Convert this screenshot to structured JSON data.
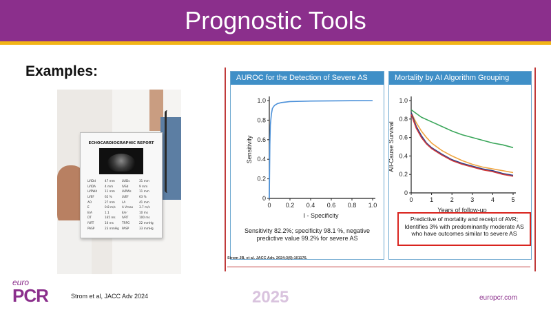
{
  "slide": {
    "title": "Prognostic Tools",
    "subtitle": "Examples:",
    "colors": {
      "brand": "#8b2f8c",
      "accent": "#f2b516",
      "panel_header": "#3f8fc7",
      "highlight_box": "#d9241e"
    }
  },
  "photo": {
    "report_title": "ECHOCARDIOGRAPHIC REPORT",
    "rows": [
      [
        "LVIDd",
        "47 mm",
        "LVIDs",
        "31 mm"
      ],
      [
        "LVIDA",
        "4 mm",
        "IVSd",
        "9 mm"
      ],
      [
        "LVPWd",
        "11 mm",
        "LVPWs",
        "11 mm"
      ],
      [
        "LVEF",
        "62 %",
        "LVEF",
        "63 %"
      ],
      [
        "AO",
        "27 mm",
        "LA",
        "41 mm"
      ],
      [
        "E",
        "0.8 m/s",
        "A Vmax",
        "3.7 m/s"
      ],
      [
        "E/A",
        "1.1",
        "E/e'",
        "10 ms"
      ],
      [
        "DT",
        "165 ms",
        "IVRT",
        "100 ms"
      ],
      [
        "IVRT",
        "10 ms",
        "TRPG",
        "22 mmHg"
      ],
      [
        "PASP",
        "23 mmHg",
        "PASP",
        "33 mmHg"
      ]
    ]
  },
  "figure": {
    "left_panel": {
      "header": "AUROC for the Detection of Severe AS",
      "caption_line1": "Sensitivity 82.2%; specificity 98.1 %, negative",
      "caption_line2": "predictive value 99.2% for severe AS"
    },
    "right_panel": {
      "header": "Mortality by AI Algorithm Grouping",
      "box_line1": "Predictive of mortality and receipt of AVR;",
      "box_line2": "Identifies 3% with predominantly moderate AS",
      "box_line3": "who have outcomes similar to severe AS"
    },
    "citation": "Strom JB, et al. JACC Adv. 2024;3(9):101176."
  },
  "chart_data": [
    {
      "type": "line",
      "xlabel": "I - Specificity",
      "ylabel": "Sensitivity",
      "xlim": [
        0,
        1.0
      ],
      "ylim": [
        0,
        1.0
      ],
      "xticks": [
        "0",
        "0.2",
        "0.4",
        "0.6",
        "0.8",
        "1.0"
      ],
      "yticks": [
        "0",
        "0.2",
        "0.4",
        "0.6",
        "0.8",
        "1.0"
      ],
      "series": [
        {
          "color": "#4a90d9",
          "x": [
            0,
            0.005,
            0.01,
            0.02,
            0.03,
            0.05,
            0.08,
            0.12,
            0.2,
            0.4,
            0.7,
            1.0
          ],
          "y": [
            0,
            0.55,
            0.75,
            0.86,
            0.92,
            0.95,
            0.97,
            0.98,
            0.99,
            0.995,
            0.998,
            1.0
          ]
        }
      ]
    },
    {
      "type": "line",
      "xlabel": "Years of follow-up",
      "ylabel": "All-Cause Survival",
      "xlim": [
        0,
        5
      ],
      "ylim": [
        0,
        1.0
      ],
      "xticks": [
        "0",
        "1",
        "2",
        "3",
        "4",
        "5"
      ],
      "yticks": [
        "0",
        "0.2",
        "0.4",
        "0.6",
        "0.8",
        "1.0"
      ],
      "series": [
        {
          "color": "#3aa65a",
          "x": [
            0,
            0.5,
            1,
            1.5,
            2,
            2.5,
            3,
            3.5,
            4,
            4.5,
            5
          ],
          "y": [
            0.9,
            0.82,
            0.77,
            0.72,
            0.67,
            0.63,
            0.6,
            0.57,
            0.54,
            0.52,
            0.49
          ]
        },
        {
          "color": "#f0a540",
          "x": [
            0,
            0.25,
            0.5,
            0.75,
            1,
            1.5,
            2,
            2.5,
            3,
            3.5,
            4,
            4.5,
            5
          ],
          "y": [
            0.87,
            0.76,
            0.67,
            0.6,
            0.54,
            0.46,
            0.4,
            0.35,
            0.31,
            0.28,
            0.26,
            0.24,
            0.22
          ]
        },
        {
          "color": "#2b3f8a",
          "x": [
            0,
            0.25,
            0.5,
            0.75,
            1,
            1.5,
            2,
            2.5,
            3,
            3.5,
            4,
            4.5,
            5
          ],
          "y": [
            0.87,
            0.72,
            0.62,
            0.54,
            0.49,
            0.42,
            0.36,
            0.32,
            0.29,
            0.26,
            0.24,
            0.21,
            0.19
          ]
        },
        {
          "color": "#d03a3a",
          "x": [
            0,
            0.25,
            0.5,
            0.75,
            1,
            1.5,
            2,
            2.5,
            3,
            3.5,
            4,
            4.5,
            5
          ],
          "y": [
            0.85,
            0.7,
            0.6,
            0.53,
            0.48,
            0.41,
            0.35,
            0.31,
            0.28,
            0.25,
            0.23,
            0.2,
            0.18
          ]
        }
      ]
    }
  ],
  "footer": {
    "logo_top": "euro",
    "logo_bottom": "PCR",
    "reference": "Strom et al, JACC Adv 2024",
    "year": "2025",
    "url": "europcr.com"
  }
}
